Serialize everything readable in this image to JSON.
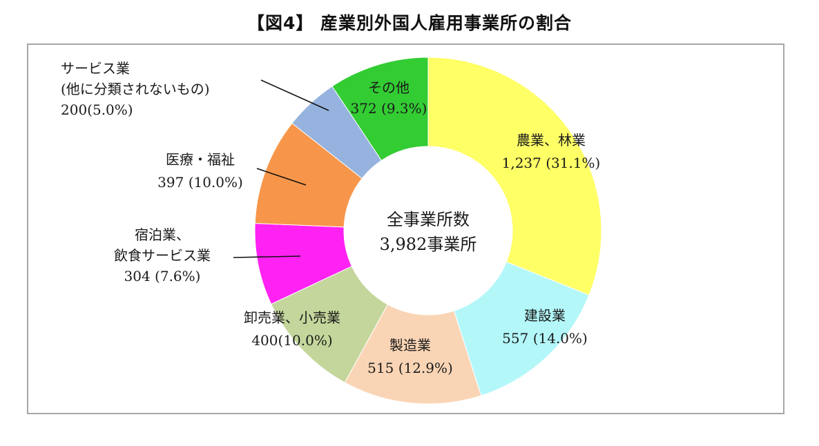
{
  "title": "【図4】 産業別外国人雇用事業所の割合",
  "center_label": [
    "全事業所数",
    "3,982事業所"
  ],
  "chart_data": {
    "type": "pie",
    "subtype": "donut",
    "title": "【図4】 産業別外国人雇用事業所の割合",
    "total": 3982,
    "start_angle_deg": 0,
    "direction": "clockwise",
    "slices": [
      {
        "name": "農業、林業",
        "value": 1237,
        "percent": 31.1,
        "color": "#FFFF66",
        "label_lines": [
          "農業、林業",
          "1,237 (31.1%)"
        ]
      },
      {
        "name": "建設業",
        "value": 557,
        "percent": 14.0,
        "color": "#B3F7F9",
        "label_lines": [
          "建設業",
          "557 (14.0%)"
        ]
      },
      {
        "name": "製造業",
        "value": 515,
        "percent": 12.9,
        "color": "#FAD5B5",
        "label_lines": [
          "製造業",
          "515 (12.9%)"
        ]
      },
      {
        "name": "卸売業、小売業",
        "value": 400,
        "percent": 10.0,
        "color": "#C4D69B",
        "label_lines": [
          "卸売業、小売業",
          "400(10.0%)"
        ]
      },
      {
        "name": "宿泊業、飲食サービス業",
        "value": 304,
        "percent": 7.6,
        "color": "#FF22F2",
        "label_lines": [
          "宿泊業、",
          "飲食サービス業",
          "304 (7.6%)"
        ]
      },
      {
        "name": "医療・福祉",
        "value": 397,
        "percent": 10.0,
        "color": "#F7964A",
        "label_lines": [
          "医療・福祉",
          "397 (10.0%)"
        ]
      },
      {
        "name": "サービス業(他に分類されないもの)",
        "value": 200,
        "percent": 5.0,
        "color": "#95B3DE",
        "label_lines": [
          "サービス業",
          "(他に分類されないもの)",
          "200(5.0%)"
        ]
      },
      {
        "name": "その他",
        "value": 372,
        "percent": 9.3,
        "color": "#33CC33",
        "label_lines": [
          "その他",
          "372 (9.3%)"
        ]
      }
    ]
  }
}
